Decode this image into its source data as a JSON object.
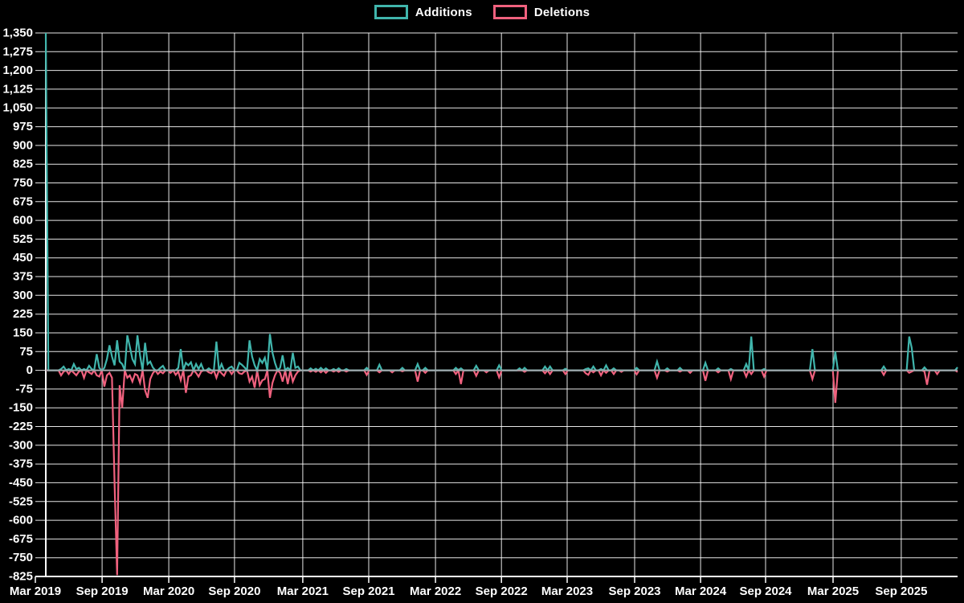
{
  "page": {
    "background": "#000000"
  },
  "chart_data": {
    "type": "line",
    "title": "",
    "xlabel": "",
    "ylabel": "",
    "legend_position": "top-center",
    "grid": true,
    "colors": {
      "background": "#000000",
      "grid": "#ffffff",
      "axis": "#ffffff",
      "zero_line": "#a5a9ac",
      "text": "#ffffff"
    },
    "series": [
      {
        "name": "Additions",
        "color": "#40b5ac"
      },
      {
        "name": "Deletions",
        "color": "#f0617e"
      }
    ],
    "y_axis": {
      "min": -825,
      "max": 1350,
      "step": 75,
      "labels": [
        "1,350",
        "1,275",
        "1,200",
        "1,125",
        "1,050",
        "975",
        "900",
        "825",
        "750",
        "675",
        "600",
        "525",
        "450",
        "375",
        "300",
        "225",
        "150",
        "75",
        "0",
        "-75",
        "-150",
        "-225",
        "-300",
        "-375",
        "-450",
        "-525",
        "-600",
        "-675",
        "-750",
        "-825"
      ]
    },
    "x_axis": {
      "labels": [
        "Mar 2019",
        "Sep 2019",
        "Mar 2020",
        "Sep 2020",
        "Mar 2021",
        "Sep 2021",
        "Mar 2022",
        "Sep 2022",
        "Mar 2023",
        "Sep 2023",
        "Mar 2024",
        "Sep 2024",
        "Mar 2025",
        "Sep 2025"
      ],
      "week_positions": [
        -4.1,
        22.1,
        48.3,
        74.1,
        100.9,
        126.8,
        153.0,
        178.9,
        204.7,
        231.2,
        257.1,
        282.6,
        309.1,
        335.9
      ]
    },
    "weeks_total": 359,
    "points_format": [
      "week_index",
      "additions",
      "deletions"
    ],
    "points": [
      [
        0,
        1350,
        0
      ],
      [
        6,
        5,
        -20
      ],
      [
        7,
        15,
        -5
      ],
      [
        9,
        5,
        -15
      ],
      [
        11,
        25,
        -10
      ],
      [
        12,
        5,
        -20
      ],
      [
        13,
        10,
        -5
      ],
      [
        15,
        5,
        -30
      ],
      [
        17,
        18,
        -8
      ],
      [
        18,
        5,
        -15
      ],
      [
        20,
        65,
        -20
      ],
      [
        21,
        10,
        -25
      ],
      [
        23,
        10,
        -65
      ],
      [
        24,
        45,
        -20
      ],
      [
        25,
        100,
        -10
      ],
      [
        26,
        55,
        -30
      ],
      [
        27,
        20,
        -450
      ],
      [
        28,
        120,
        -820
      ],
      [
        29,
        35,
        -60
      ],
      [
        30,
        25,
        -150
      ],
      [
        32,
        140,
        -30
      ],
      [
        33,
        95,
        -20
      ],
      [
        34,
        45,
        -45
      ],
      [
        35,
        25,
        -15
      ],
      [
        36,
        140,
        -20
      ],
      [
        37,
        60,
        -50
      ],
      [
        39,
        110,
        -80
      ],
      [
        40,
        25,
        -110
      ],
      [
        41,
        35,
        -35
      ],
      [
        42,
        12,
        -12
      ],
      [
        44,
        0,
        -15
      ],
      [
        45,
        10,
        -5
      ],
      [
        46,
        18,
        -12
      ],
      [
        49,
        0,
        -10
      ],
      [
        51,
        0,
        -18
      ],
      [
        52,
        10,
        -5
      ],
      [
        53,
        85,
        -40
      ],
      [
        55,
        30,
        -90
      ],
      [
        56,
        20,
        -25
      ],
      [
        57,
        32,
        -20
      ],
      [
        59,
        25,
        -10
      ],
      [
        60,
        5,
        -25
      ],
      [
        61,
        25,
        -5
      ],
      [
        64,
        8,
        -8
      ],
      [
        65,
        0,
        -12
      ],
      [
        67,
        115,
        -30
      ],
      [
        69,
        25,
        -12
      ],
      [
        70,
        0,
        -22
      ],
      [
        72,
        10,
        0
      ],
      [
        73,
        15,
        -15
      ],
      [
        76,
        30,
        -12
      ],
      [
        77,
        22,
        -15
      ],
      [
        78,
        12,
        -5
      ],
      [
        80,
        120,
        -45
      ],
      [
        81,
        55,
        -25
      ],
      [
        82,
        20,
        -70
      ],
      [
        84,
        45,
        -60
      ],
      [
        85,
        30,
        -40
      ],
      [
        86,
        50,
        -35
      ],
      [
        88,
        145,
        -110
      ],
      [
        89,
        70,
        -50
      ],
      [
        90,
        30,
        -20
      ],
      [
        92,
        10,
        -10
      ],
      [
        93,
        60,
        -45
      ],
      [
        95,
        10,
        -55
      ],
      [
        97,
        70,
        -45
      ],
      [
        98,
        10,
        -20
      ],
      [
        99,
        15,
        -5
      ],
      [
        104,
        8,
        -5
      ],
      [
        106,
        6,
        -6
      ],
      [
        108,
        10,
        -8
      ],
      [
        110,
        8,
        -10
      ],
      [
        113,
        5,
        -5
      ],
      [
        115,
        8,
        -6
      ],
      [
        118,
        5,
        -5
      ],
      [
        126,
        10,
        -18
      ],
      [
        131,
        22,
        -8
      ],
      [
        136,
        0,
        -8
      ],
      [
        140,
        10,
        -4
      ],
      [
        146,
        25,
        -45
      ],
      [
        149,
        10,
        -10
      ],
      [
        161,
        10,
        -15
      ],
      [
        163,
        8,
        -55
      ],
      [
        169,
        18,
        -22
      ],
      [
        173,
        0,
        -8
      ],
      [
        178,
        20,
        -28
      ],
      [
        186,
        8,
        0
      ],
      [
        188,
        10,
        -6
      ],
      [
        196,
        15,
        -12
      ],
      [
        198,
        15,
        -15
      ],
      [
        204,
        6,
        -15
      ],
      [
        212,
        5,
        -12
      ],
      [
        213,
        8,
        -18
      ],
      [
        215,
        15,
        -8
      ],
      [
        218,
        5,
        -20
      ],
      [
        220,
        20,
        -10
      ],
      [
        223,
        8,
        -15
      ],
      [
        226,
        0,
        -6
      ],
      [
        232,
        10,
        -16
      ],
      [
        240,
        35,
        -30
      ],
      [
        244,
        8,
        -5
      ],
      [
        249,
        10,
        -5
      ],
      [
        253,
        0,
        -10
      ],
      [
        259,
        30,
        -42
      ],
      [
        264,
        8,
        -8
      ],
      [
        269,
        5,
        -35
      ],
      [
        275,
        25,
        -25
      ],
      [
        277,
        135,
        -15
      ],
      [
        282,
        5,
        -25
      ],
      [
        301,
        85,
        -35
      ],
      [
        310,
        75,
        -130
      ],
      [
        329,
        15,
        -18
      ],
      [
        339,
        135,
        -10
      ],
      [
        340,
        90,
        -5
      ],
      [
        345,
        12,
        -5
      ],
      [
        346,
        0,
        -58
      ],
      [
        350,
        0,
        -15
      ],
      [
        358,
        12,
        -6
      ]
    ]
  }
}
